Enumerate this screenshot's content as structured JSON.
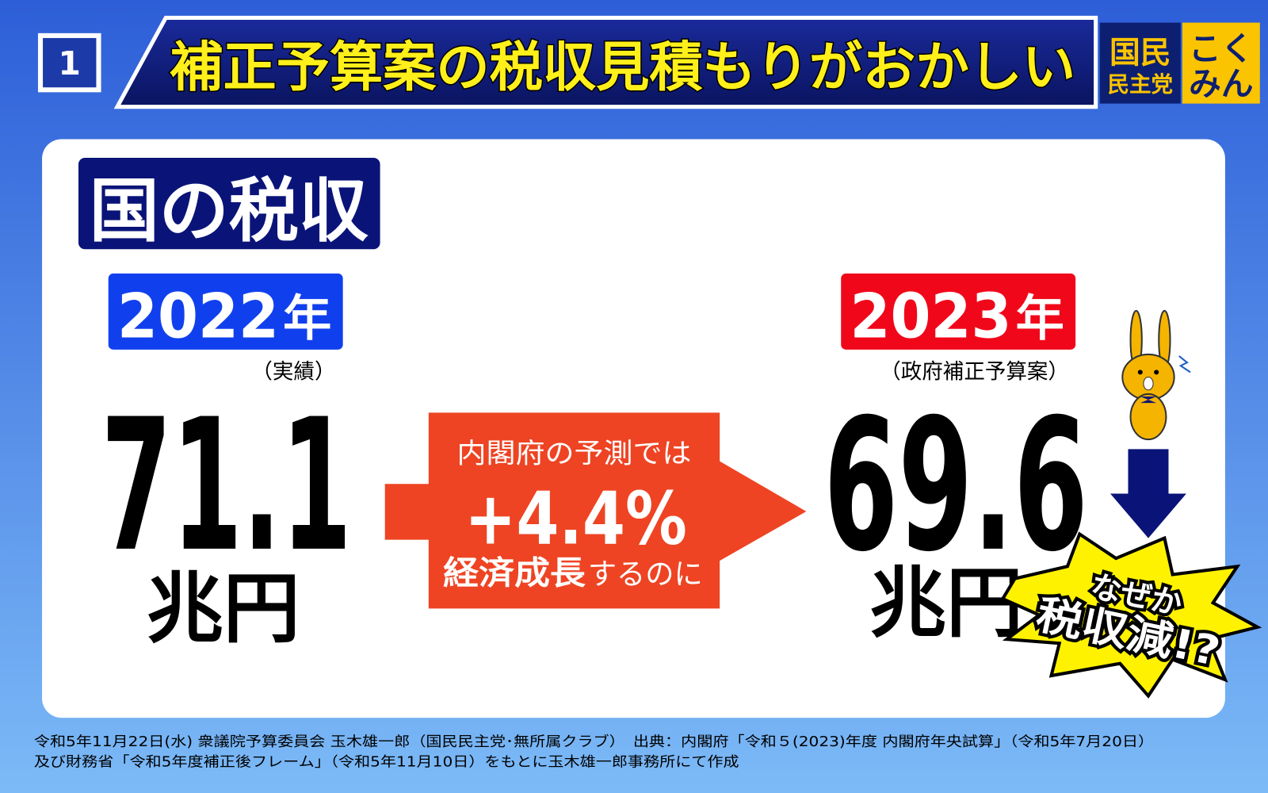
{
  "slide_number": "1",
  "header": {
    "title": "補正予算案の税収見積もりがおかしい",
    "logo": {
      "party_line1": "国民",
      "party_line2": "民主党",
      "brand_line1": "こく",
      "brand_line2": "みん"
    }
  },
  "section_label": "国の税収",
  "left": {
    "year": "2022",
    "year_unit": "年",
    "note": "（実績）",
    "value": "71.1",
    "unit": "兆円"
  },
  "arrow": {
    "line1": "内閣府の予測では",
    "growth": "+4.4%",
    "line3_bold": "経済成長",
    "line3_rest": "するのに"
  },
  "right": {
    "year": "2023",
    "year_unit": "年",
    "note": "（政府補正予算案）",
    "value": "69.6",
    "unit": "兆円"
  },
  "burst": {
    "line1": "なぜか",
    "line2": "税収減!?"
  },
  "footer": {
    "line1": "令和5年11月22日(水) 衆議院予算委員会 玉木雄一郎（国民民主党･無所属クラブ）　出典：内閣府「令和５(2023)年度 内閣府年央試算」（令和5年7月20日）",
    "line2": "及び財務省「令和5年度補正後フレーム」（令和5年11月10日）をもとに玉木雄一郎事務所にて作成"
  }
}
